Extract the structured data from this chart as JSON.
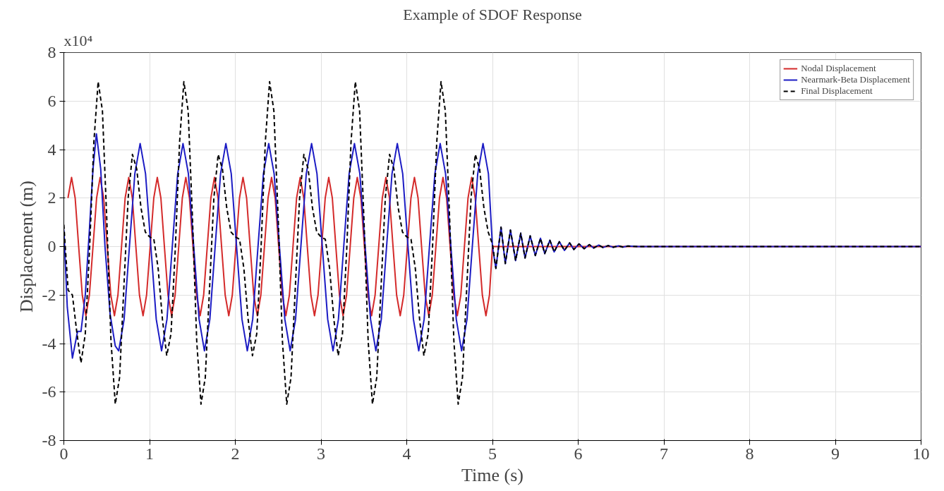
{
  "chart_data": {
    "type": "line",
    "title": "Example of SDOF Response",
    "xlabel": "Time (s)",
    "ylabel": "Displacement (m)",
    "annotations": [
      "x10⁴"
    ],
    "xlim": [
      0,
      10
    ],
    "xticks": [
      0,
      1,
      2,
      3,
      4,
      5,
      6,
      7,
      8,
      9,
      10
    ],
    "ylim": [
      -8,
      8
    ],
    "yticks": [
      -8,
      -6,
      -4,
      -2,
      0,
      2,
      4,
      6,
      8
    ],
    "grid": true,
    "legend": "top right",
    "series": [
      {
        "name": "Nodal Displacement",
        "color": "#d42a2a",
        "line_style": "solid",
        "x": [
          0.048,
          0.09,
          0.132,
          0.173,
          0.215,
          0.257,
          0.298,
          0.34,
          0.382,
          0.423,
          0.465,
          0.506,
          0.548,
          0.59,
          0.631,
          0.673,
          0.715,
          0.757,
          0.799,
          0.84,
          0.882,
          0.924,
          0.965,
          1.007,
          1.049,
          1.09,
          1.132,
          1.173,
          1.215,
          1.257,
          1.298,
          1.34,
          1.382,
          1.423,
          1.465,
          1.506,
          1.548,
          1.59,
          1.631,
          1.673,
          1.715,
          1.757,
          1.799,
          1.84,
          1.882,
          1.924,
          1.965,
          2.007,
          2.049,
          2.09,
          2.132,
          2.173,
          2.215,
          2.257,
          2.298,
          2.34,
          2.382,
          2.423,
          2.465,
          2.506,
          2.548,
          2.59,
          2.631,
          2.673,
          2.715,
          2.757,
          2.799,
          2.84,
          2.882,
          2.924,
          2.965,
          3.007,
          3.049,
          3.09,
          3.132,
          3.173,
          3.215,
          3.257,
          3.298,
          3.34,
          3.382,
          3.423,
          3.465,
          3.506,
          3.548,
          3.59,
          3.631,
          3.673,
          3.715,
          3.757,
          3.799,
          3.84,
          3.882,
          3.924,
          3.965,
          4.007,
          4.049,
          4.09,
          4.132,
          4.173,
          4.215,
          4.257,
          4.298,
          4.34,
          4.382,
          4.423,
          4.465,
          4.506,
          4.548,
          4.59,
          4.631,
          4.673,
          4.715,
          4.757,
          4.799,
          4.84,
          4.882,
          4.924,
          4.965,
          5.0,
          10
        ],
        "values": [
          2.0,
          2.85,
          2.0,
          0,
          -2.0,
          -2.85,
          -2.0,
          0,
          2.0,
          2.85,
          2.0,
          0,
          -2.0,
          -2.85,
          -2.0,
          0,
          2.0,
          2.85,
          2.0,
          0,
          -2.0,
          -2.85,
          -2.0,
          0,
          2.0,
          2.85,
          2.0,
          0,
          -2.0,
          -2.85,
          -2.0,
          0,
          2.0,
          2.85,
          2.0,
          0,
          -2.0,
          -2.85,
          -2.0,
          0,
          2.0,
          2.85,
          2.0,
          0,
          -2.0,
          -2.85,
          -2.0,
          0,
          2.0,
          2.85,
          2.0,
          0,
          -2.0,
          -2.85,
          -2.0,
          0,
          2.0,
          2.85,
          2.0,
          0,
          -2.0,
          -2.85,
          -2.0,
          0,
          2.0,
          2.85,
          2.0,
          0,
          -2.0,
          -2.85,
          -2.0,
          0,
          2.0,
          2.85,
          2.0,
          0,
          -2.0,
          -2.85,
          -2.0,
          0,
          2.0,
          2.85,
          2.0,
          0,
          -2.0,
          -2.85,
          -2.0,
          0,
          2.0,
          2.85,
          2.0,
          0,
          -2.0,
          -2.85,
          -2.0,
          0,
          2.0,
          2.85,
          2.0,
          0,
          -2.0,
          -2.85,
          -2.0,
          0,
          2.0,
          2.85,
          2.0,
          0,
          -2.0,
          -2.85,
          -2.0,
          0,
          2.0,
          2.85,
          2.0,
          0,
          -2.0,
          -2.85,
          -2.0,
          0,
          0
        ]
      },
      {
        "name": "Nearmark-Beta Displacement",
        "color": "#1c1cc4",
        "line_style": "solid",
        "x": [
          0,
          0.04,
          0.1,
          0.16,
          0.2,
          0.25,
          0.3,
          0.34,
          0.38,
          0.43,
          0.48,
          0.54,
          0.6,
          0.64,
          0.703,
          0.765,
          0.828,
          0.89,
          0.953,
          1.015,
          1.078,
          1.14,
          1.203,
          1.265,
          1.328,
          1.39,
          1.453,
          1.515,
          1.578,
          1.64,
          1.703,
          1.765,
          1.828,
          1.89,
          1.953,
          2.015,
          2.078,
          2.14,
          2.203,
          2.265,
          2.328,
          2.39,
          2.453,
          2.515,
          2.578,
          2.64,
          2.703,
          2.765,
          2.828,
          2.89,
          2.953,
          3.015,
          3.078,
          3.14,
          3.203,
          3.265,
          3.328,
          3.39,
          3.453,
          3.515,
          3.578,
          3.64,
          3.703,
          3.765,
          3.828,
          3.89,
          3.953,
          4.015,
          4.078,
          4.14,
          4.203,
          4.265,
          4.328,
          4.39,
          4.453,
          4.515,
          4.578,
          4.64,
          4.703,
          4.765,
          4.828,
          4.89,
          4.953,
          5.0,
          5.04,
          5.1,
          5.15,
          5.21,
          5.27,
          5.33,
          5.38,
          5.44,
          5.5,
          5.56,
          5.61,
          5.67,
          5.72,
          5.78,
          5.84,
          5.9,
          5.95,
          6.01,
          6.07,
          6.13,
          6.18,
          6.24,
          6.29,
          6.35,
          6.41,
          6.47,
          6.52,
          6.58,
          6.7,
          10
        ],
        "values": [
          0.7,
          -2.5,
          -4.6,
          -3.5,
          -3.5,
          -2.0,
          0.8,
          3.2,
          4.65,
          3.2,
          0,
          -2.8,
          -4.1,
          -4.3,
          -3.0,
          0,
          3.0,
          4.25,
          3.0,
          0,
          -3.0,
          -4.3,
          -3.0,
          0,
          3.0,
          4.25,
          3.0,
          0,
          -3.0,
          -4.3,
          -3.0,
          0,
          3.0,
          4.25,
          3.0,
          0,
          -3.0,
          -4.3,
          -3.0,
          0,
          3.0,
          4.25,
          3.0,
          0,
          -3.0,
          -4.3,
          -3.0,
          0,
          3.0,
          4.25,
          3.0,
          0,
          -3.0,
          -4.3,
          -3.0,
          0,
          3.0,
          4.25,
          3.0,
          0,
          -3.0,
          -4.3,
          -3.0,
          0,
          3.0,
          4.25,
          3.0,
          0,
          -3.0,
          -4.3,
          -3.0,
          0,
          3.0,
          4.25,
          3.0,
          0,
          -3.0,
          -4.3,
          -3.0,
          0,
          3.0,
          4.25,
          3.0,
          0,
          -0.9,
          0.8,
          -0.7,
          0.68,
          -0.58,
          0.55,
          -0.47,
          0.44,
          -0.37,
          0.34,
          -0.29,
          0.26,
          -0.22,
          0.2,
          -0.16,
          0.15,
          -0.12,
          0.11,
          -0.09,
          0.08,
          -0.06,
          0.06,
          -0.04,
          0.04,
          -0.03,
          0.03,
          -0.02,
          0.02,
          0,
          0
        ]
      },
      {
        "name": "Final Displacement",
        "color": "#000000",
        "line_style": "dashed",
        "x": [
          0,
          0.05,
          0.1,
          0.15,
          0.2,
          0.25,
          0.3,
          0.35,
          0.4,
          0.45,
          0.5,
          0.55,
          0.6,
          0.65,
          0.7,
          0.75,
          0.8,
          0.85,
          0.9,
          0.95,
          1.0,
          1.05,
          1.1,
          1.15,
          1.2,
          1.25,
          1.3,
          1.35,
          1.4,
          1.45,
          1.5,
          1.55,
          1.6,
          1.65,
          1.7,
          1.75,
          1.8,
          1.85,
          1.9,
          1.95,
          2.0,
          2.05,
          2.1,
          2.15,
          2.2,
          2.25,
          2.3,
          2.35,
          2.4,
          2.45,
          2.5,
          2.55,
          2.6,
          2.65,
          2.7,
          2.75,
          2.8,
          2.85,
          2.9,
          2.95,
          3.0,
          3.05,
          3.1,
          3.15,
          3.2,
          3.25,
          3.3,
          3.35,
          3.4,
          3.45,
          3.5,
          3.55,
          3.6,
          3.65,
          3.7,
          3.75,
          3.8,
          3.85,
          3.9,
          3.95,
          4.0,
          4.05,
          4.1,
          4.15,
          4.2,
          4.25,
          4.3,
          4.35,
          4.4,
          4.45,
          4.5,
          4.55,
          4.6,
          4.65,
          4.7,
          4.75,
          4.8,
          4.85,
          4.9,
          4.95,
          5.0,
          5.04,
          5.1,
          5.15,
          5.21,
          5.27,
          5.33,
          5.38,
          5.44,
          5.5,
          5.56,
          5.61,
          5.67,
          5.72,
          5.78,
          5.84,
          5.9,
          5.95,
          6.01,
          6.07,
          6.13,
          6.18,
          6.24,
          6.29,
          6.35,
          6.41,
          6.47,
          6.52,
          6.58,
          6.7,
          10
        ],
        "values": [
          0.9,
          -1.8,
          -2.0,
          -3.5,
          -4.8,
          -3.6,
          -0.1,
          4.3,
          6.8,
          5.6,
          1.2,
          -3.9,
          -6.5,
          -5.4,
          -1.7,
          2.0,
          3.8,
          3.2,
          1.6,
          0.6,
          0.4,
          0.3,
          -0.9,
          -3.0,
          -4.5,
          -3.6,
          -0.1,
          4.3,
          6.8,
          5.6,
          1.2,
          -3.9,
          -6.5,
          -5.4,
          -1.7,
          2.0,
          3.8,
          3.2,
          1.6,
          0.6,
          0.4,
          0.3,
          -0.9,
          -3.0,
          -4.5,
          -3.6,
          -0.1,
          4.3,
          6.8,
          5.6,
          1.2,
          -3.9,
          -6.5,
          -5.4,
          -1.7,
          2.0,
          3.8,
          3.2,
          1.6,
          0.6,
          0.4,
          0.3,
          -0.9,
          -3.0,
          -4.5,
          -3.6,
          -0.1,
          4.3,
          6.8,
          5.6,
          1.2,
          -3.9,
          -6.5,
          -5.4,
          -1.7,
          2.0,
          3.8,
          3.2,
          1.6,
          0.6,
          0.4,
          0.3,
          -0.9,
          -3.0,
          -4.5,
          -3.6,
          -0.1,
          4.3,
          6.8,
          5.6,
          1.2,
          -3.9,
          -6.5,
          -5.4,
          -1.7,
          2.0,
          3.8,
          3.2,
          1.6,
          0.6,
          0.1,
          -0.9,
          0.8,
          -0.7,
          0.68,
          -0.58,
          0.55,
          -0.47,
          0.44,
          -0.37,
          0.34,
          -0.29,
          0.26,
          -0.22,
          0.2,
          -0.16,
          0.15,
          -0.12,
          0.11,
          -0.09,
          0.08,
          -0.06,
          0.06,
          -0.04,
          0.04,
          -0.03,
          0.03,
          -0.02,
          0.02,
          0,
          0
        ]
      }
    ]
  }
}
